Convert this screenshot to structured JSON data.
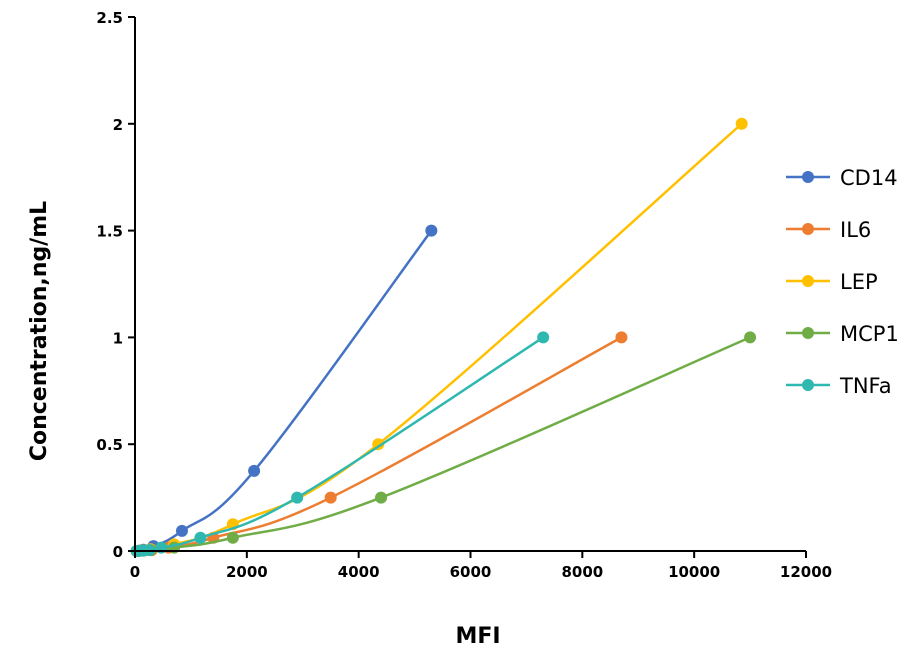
{
  "chart_data": {
    "type": "line",
    "xlabel": "MFI",
    "ylabel": "Concentration,ng/mL",
    "xlim": [
      0,
      12000
    ],
    "ylim": [
      0,
      2.5
    ],
    "xticks": [
      0,
      2000,
      4000,
      6000,
      8000,
      10000,
      12000
    ],
    "yticks": [
      0,
      0.5,
      1,
      1.5,
      2,
      2.5
    ],
    "xtick_labels": [
      "0",
      "2000",
      "4000",
      "6000",
      "8000",
      "10000",
      "12000"
    ],
    "ytick_labels": [
      "0",
      "0.5",
      "1",
      "1.5",
      "2",
      "2.5"
    ],
    "grid": false,
    "legend_position": "right",
    "series": [
      {
        "name": "CD14",
        "color": "#4472C4",
        "points": [
          [
            30,
            0
          ],
          [
            80,
            0.002
          ],
          [
            150,
            0.006
          ],
          [
            330,
            0.023
          ],
          [
            840,
            0.094
          ],
          [
            2130,
            0.375
          ],
          [
            5300,
            1.5
          ]
        ]
      },
      {
        "name": "IL6",
        "color": "#ED7D31",
        "points": [
          [
            30,
            0
          ],
          [
            80,
            0.001
          ],
          [
            150,
            0.002
          ],
          [
            300,
            0.004
          ],
          [
            600,
            0.016
          ],
          [
            1400,
            0.062
          ],
          [
            3500,
            0.25
          ],
          [
            8700,
            1.0
          ]
        ]
      },
      {
        "name": "LEP",
        "color": "#FFC000",
        "points": [
          [
            30,
            0
          ],
          [
            80,
            0.001
          ],
          [
            150,
            0.003
          ],
          [
            280,
            0.008
          ],
          [
            700,
            0.031
          ],
          [
            1750,
            0.125
          ],
          [
            4350,
            0.5
          ],
          [
            10850,
            2.0
          ]
        ]
      },
      {
        "name": "MCP1",
        "color": "#70AD47",
        "points": [
          [
            30,
            0
          ],
          [
            80,
            0.001
          ],
          [
            150,
            0.002
          ],
          [
            280,
            0.004
          ],
          [
            700,
            0.016
          ],
          [
            1750,
            0.062
          ],
          [
            4400,
            0.25
          ],
          [
            11000,
            1.0
          ]
        ]
      },
      {
        "name": "TNFa",
        "color": "#2EB8B0",
        "points": [
          [
            30,
            0
          ],
          [
            80,
            0.001
          ],
          [
            150,
            0.002
          ],
          [
            250,
            0.004
          ],
          [
            470,
            0.016
          ],
          [
            1170,
            0.062
          ],
          [
            2900,
            0.25
          ],
          [
            7300,
            1.0
          ]
        ]
      }
    ]
  }
}
